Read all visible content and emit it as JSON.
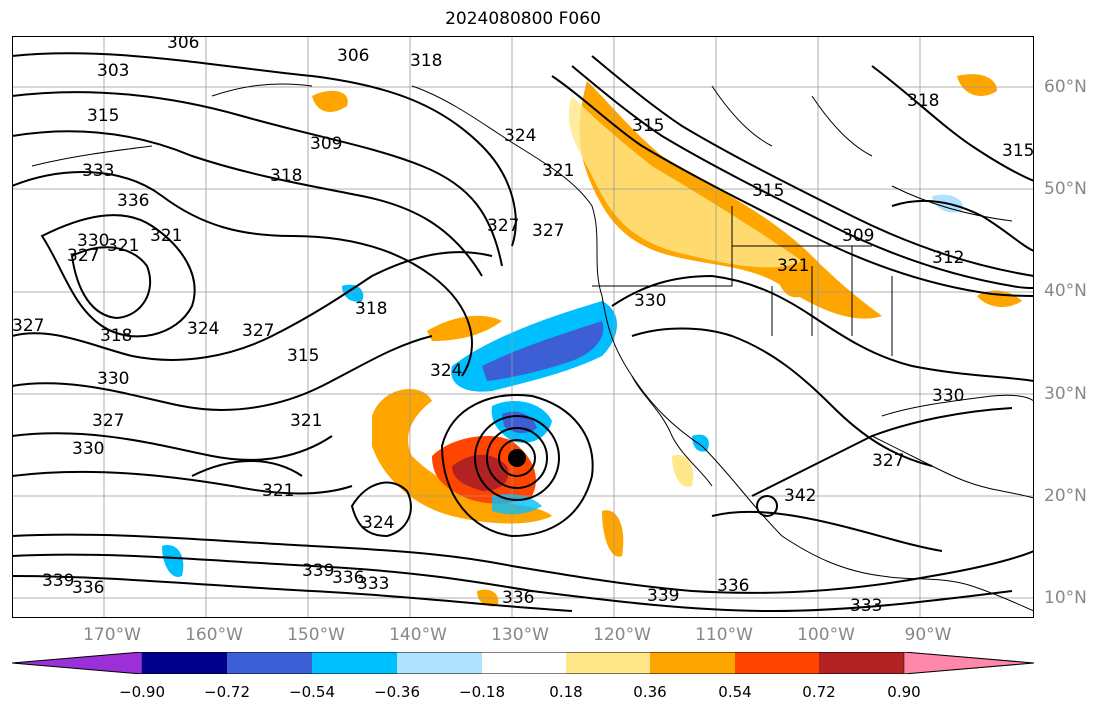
{
  "title": "2024080800 F060",
  "lat_labels": [
    "60°N",
    "50°N",
    "40°N",
    "30°N",
    "20°N",
    "10°N"
  ],
  "lon_labels": [
    "170°W",
    "160°W",
    "150°W",
    "140°W",
    "130°W",
    "120°W",
    "110°W",
    "100°W",
    "90°W"
  ],
  "contour_labels": [
    "303",
    "306",
    "306",
    "309",
    "315",
    "318",
    "333",
    "336",
    "330",
    "327",
    "321",
    "321",
    "318",
    "324",
    "327",
    "315",
    "318",
    "324",
    "327",
    "321",
    "330",
    "324",
    "330",
    "327",
    "327",
    "321",
    "336",
    "336",
    "339",
    "339",
    "333",
    "336",
    "339",
    "336",
    "333",
    "342",
    "330",
    "327",
    "315",
    "315",
    "309",
    "312",
    "318",
    "321",
    "315",
    "330",
    "327",
    "324",
    "321",
    "318"
  ],
  "colorbar": {
    "ticks": [
      "−0.90",
      "−0.72",
      "−0.54",
      "−0.36",
      "−0.18",
      "0.18",
      "0.36",
      "0.54",
      "0.72",
      "0.90"
    ],
    "colors": [
      "#9b30d8",
      "#00008b",
      "#3c5fd6",
      "#00bfff",
      "#b0e2ff",
      "#ffffff",
      "#ffe78a",
      "#ffa500",
      "#ff4500",
      "#b22222",
      "#ff88aa"
    ]
  }
}
